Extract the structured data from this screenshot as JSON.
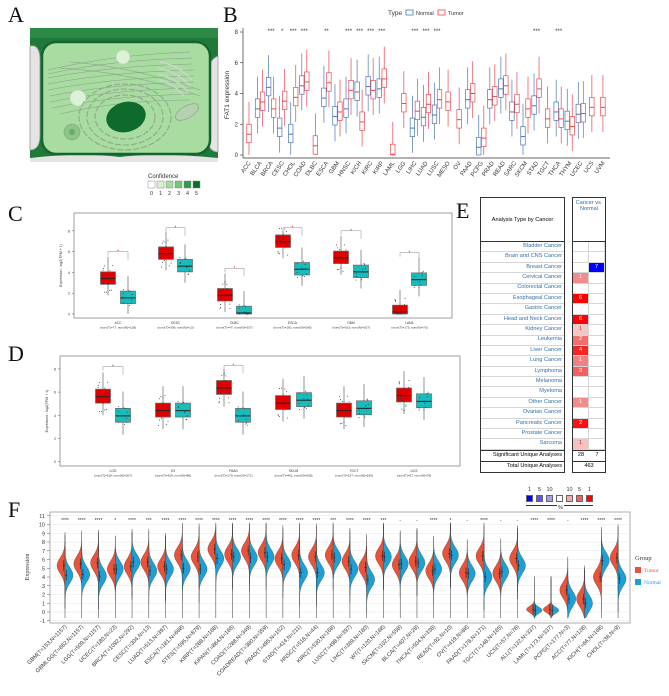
{
  "panels": {
    "a": "A",
    "b": "B",
    "c": "C",
    "d": "D",
    "e": "E",
    "f": "F"
  },
  "panel_a": {
    "legend_title": "Confidence",
    "legend_levels": [
      "0",
      "1",
      "2",
      "3",
      "4",
      "5"
    ],
    "legend_colors": [
      "#ffffff",
      "#d9f0d3",
      "#a6dba0",
      "#74c476",
      "#2e9b4f",
      "#0b6b2b"
    ]
  },
  "chart_data": [
    {
      "type": "box",
      "ylabel": "FAT1 expression",
      "ylim": [
        0,
        8
      ],
      "yticks": [
        0,
        2,
        4,
        6,
        8
      ],
      "legend_title": "Type",
      "legend": [
        "Normal",
        "Tumor"
      ],
      "colors": {
        "Normal": "#4a77b4",
        "Tumor": "#e8474f"
      },
      "categories": [
        "ACC",
        "BLCA",
        "BRCA",
        "CESC",
        "CHOL",
        "COAD",
        "DLBC",
        "ESCA",
        "GBM",
        "HNSC",
        "KICH",
        "KIRC",
        "KIRP",
        "LAML",
        "LGG",
        "LIHC",
        "LUAD",
        "LUSC",
        "MESO",
        "OV",
        "PAAD",
        "PCPG",
        "PRAD",
        "READ",
        "SARC",
        "SKCM",
        "STAD",
        "TGCT",
        "THCA",
        "THYM",
        "UCEC",
        "UCS",
        "UVM"
      ],
      "normal_median": [
        null,
        3.0,
        4.4,
        1.75,
        1.35,
        4.5,
        null,
        3.7,
        2.5,
        3.0,
        4.1,
        4.45,
        4.3,
        null,
        null,
        1.75,
        2.45,
        2.6,
        null,
        null,
        3.6,
        0.5,
        3.6,
        4.3,
        2.8,
        1.2,
        3.2,
        null,
        2.8,
        2.2,
        2.65,
        null,
        null
      ],
      "tumor_median": [
        1.35,
        3.45,
        3.0,
        3.5,
        3.75,
        4.75,
        0.6,
        4.7,
        2.8,
        4.2,
        2.15,
        4.2,
        4.95,
        0.05,
        3.35,
        2.85,
        3.3,
        3.6,
        3.45,
        2.3,
        4.0,
        1.1,
        3.8,
        4.5,
        3.3,
        3.0,
        4.3,
        2.35,
        2.35,
        1.85,
        2.7,
        3.1,
        3.1
      ],
      "significance": [
        "",
        "",
        "***",
        "*",
        "***",
        "***",
        "",
        "**",
        "",
        "***",
        "***",
        "***",
        "***",
        "",
        "",
        "***",
        "***",
        "***",
        "",
        "",
        "",
        "",
        "",
        "",
        "",
        "",
        "***",
        "",
        "***",
        "",
        "",
        "",
        ""
      ]
    },
    {
      "type": "box",
      "ylabel": "Expression - log2(TPM + 1)",
      "ylim": [
        0,
        8
      ],
      "yticks": [
        0,
        2,
        4,
        6,
        8
      ],
      "colors": {
        "Tumor": "#e00000",
        "Normal": "#17bcbc"
      },
      "categories": [
        "ACC",
        "CESC",
        "DLBC",
        "ESCA",
        "GBM",
        "LAML"
      ],
      "sublabels": [
        "(num(T)=77; num(N)=128)",
        "(num(T)=306; num(N)=13)",
        "(num(T)=47; num(N)=337)",
        "(num(T)=182; num(N)=286)",
        "(num(T)=163; num(N)=207)",
        "(num(T)=173; num(N)=70)"
      ],
      "tumor_median": [
        3.4,
        5.8,
        1.8,
        6.95,
        5.4,
        0.2
      ],
      "normal_median": [
        1.55,
        4.6,
        0.1,
        4.3,
        4.05,
        3.3
      ],
      "significance": [
        "*",
        "*",
        "*",
        "*",
        "*",
        "*"
      ]
    },
    {
      "type": "box",
      "ylabel": "Expression - log2(TPM + 1)",
      "ylim": [
        0,
        8
      ],
      "yticks": [
        0,
        2,
        4,
        6,
        8
      ],
      "colors": {
        "Tumor": "#e00000",
        "Normal": "#17bcbc"
      },
      "categories": [
        "LGG",
        "OV",
        "PAAD",
        "SKCM",
        "TGCT",
        "UCS"
      ],
      "sublabels": [
        "(num(T)=518; num(N)=207)",
        "(num(T)=426; num(N)=88)",
        "(num(T)=179; num(N)=171)",
        "(num(T)=461; num(N)=558)",
        "(num(T)=137; num(N)=165)",
        "(num(T)=57; num(N)=78)"
      ],
      "tumor_median": [
        5.6,
        4.4,
        6.35,
        5.05,
        4.4,
        5.7
      ],
      "normal_median": [
        3.95,
        4.4,
        3.95,
        5.3,
        4.6,
        5.2
      ],
      "significance": [
        "*",
        "",
        "*",
        "",
        "",
        ""
      ]
    },
    {
      "type": "table",
      "header_label": "Analysis Type by Cancer",
      "column_header": "Cancer vs. Normal",
      "rows": [
        {
          "name": "Bladder Cancer",
          "over": "",
          "under": "",
          "over_color": "",
          "under_color": ""
        },
        {
          "name": "Brain and CNS Cancer",
          "over": "",
          "under": "",
          "over_color": "",
          "under_color": ""
        },
        {
          "name": "Breast Cancer",
          "over": "",
          "under": "7",
          "over_color": "",
          "under_color": "#0000ff"
        },
        {
          "name": "Cervical Cancer",
          "over": "1",
          "under": "",
          "over_color": "#f28b8b",
          "under_color": ""
        },
        {
          "name": "Colorectal Cancer",
          "over": "",
          "under": "",
          "over_color": "",
          "under_color": ""
        },
        {
          "name": "Esophageal Cancer",
          "over": "6",
          "under": "",
          "over_color": "#ff0000",
          "under_color": ""
        },
        {
          "name": "Gastric Cancer",
          "over": "",
          "under": "",
          "over_color": "",
          "under_color": ""
        },
        {
          "name": "Head and Neck Cancer",
          "over": "6",
          "under": "",
          "over_color": "#ff0000",
          "under_color": ""
        },
        {
          "name": "Kidney Cancer",
          "over": "1",
          "under": "",
          "over_color": "#f9c6c6",
          "under_color": ""
        },
        {
          "name": "Leukemia",
          "over": "2",
          "under": "",
          "over_color": "#f07070",
          "under_color": ""
        },
        {
          "name": "Liver Cancer",
          "over": "4",
          "under": "",
          "over_color": "#f52424",
          "under_color": ""
        },
        {
          "name": "Lung Cancer",
          "over": "1",
          "under": "",
          "over_color": "#f28080",
          "under_color": ""
        },
        {
          "name": "Lymphoma",
          "over": "3",
          "under": "",
          "over_color": "#f06262",
          "under_color": ""
        },
        {
          "name": "Melanoma",
          "over": "",
          "under": "",
          "over_color": "",
          "under_color": ""
        },
        {
          "name": "Myeloma",
          "over": "",
          "under": "",
          "over_color": "",
          "under_color": ""
        },
        {
          "name": "Other Cancer",
          "over": "1",
          "under": "",
          "over_color": "#f28b8b",
          "under_color": ""
        },
        {
          "name": "Ovarian Cancer",
          "over": "",
          "under": "",
          "over_color": "",
          "under_color": ""
        },
        {
          "name": "Pancreatic Cancer",
          "over": "2",
          "under": "",
          "over_color": "#ff1010",
          "under_color": ""
        },
        {
          "name": "Prostate Cancer",
          "over": "",
          "under": "",
          "over_color": "",
          "under_color": ""
        },
        {
          "name": "Sarcoma",
          "over": "1",
          "under": "",
          "over_color": "#f9c0c0",
          "under_color": ""
        }
      ],
      "significant_label": "Significant Unique Analyses",
      "significant_over": "28",
      "significant_under": "7",
      "total_label": "Total Unique Analyses",
      "total": "463",
      "legend": {
        "labels": [
          "1",
          "5",
          "10",
          "10",
          "5",
          "1"
        ],
        "unit": "%",
        "colors": [
          "#0000ee",
          "#5a5ae8",
          "#a0a0ee",
          "#ffffff",
          "#f4a8a8",
          "#f06060",
          "#ff0000"
        ]
      }
    },
    {
      "type": "violin",
      "ylabel": "Expression",
      "ylim": [
        -1,
        11
      ],
      "yticks": [
        -1,
        0,
        1,
        2,
        3,
        4,
        5,
        6,
        7,
        8,
        9,
        10,
        11
      ],
      "legend_title": "Group",
      "legend": [
        "Tumor",
        "Normal"
      ],
      "colors": {
        "Tumor": "#e8533a",
        "Normal": "#1ea0d6"
      },
      "categories": [
        "GBM(T=153,N=1157)",
        "GBMLGG(T=662,N=1157)",
        "LGG(T=509,N=1157)",
        "UCEC(T=180,N=23)",
        "BRCA(T=1092,N=292)",
        "CESC(T=304,N=13)",
        "LUAD(T=513,N=397)",
        "ESCA(T=181,N=668)",
        "STES(T=595,N=879)",
        "KIRP(T=288,N=168)",
        "KIPAN(T=884,N=166)",
        "COAD(T=288,N=349)",
        "COADREAD(T=380,N=359)",
        "PRAD(T=495,N=152)",
        "STAD(T=414,N=211)",
        "HNSC(T=518,N=44)",
        "KIRC(T=530,N=168)",
        "LUSC(T=498,N=397)",
        "LIHC(T=369,N=160)",
        "WT(T=120,N=168)",
        "SKCM(T=102,N=558)",
        "BLCA(T=407,N=28)",
        "THCA(T=504,N=338)",
        "READ(T=92,N=10)",
        "OV(T=419,N=88)",
        "PAAD(T=178,N=171)",
        "TGCT(T=148,N=165)",
        "UCS(T=57,N=78)",
        "ALL(T=132,N=337)",
        "LAML(T=173,N=337)",
        "PCPG(T=177,N=3)",
        "ACC(T=77,N=128)",
        "KICH(T=66,N=168)",
        "CHOL(T=36,N=9)"
      ],
      "tumor_median": [
        5.3,
        5.5,
        5.6,
        4.9,
        5.2,
        5.7,
        5.2,
        6.5,
        6.3,
        7.2,
        6.6,
        7.0,
        6.8,
        6.1,
        6.5,
        6.3,
        6.5,
        5.8,
        5.1,
        6.4,
        5.4,
        5.8,
        4.7,
        6.7,
        4.5,
        6.4,
        4.4,
        6.1,
        0.3,
        0.3,
        2.5,
        1.5,
        4.0,
        6.2
      ],
      "normal_median": [
        4.2,
        4.3,
        4.1,
        4.9,
        5.7,
        4.7,
        4.9,
        5.0,
        4.9,
        6.1,
        6.3,
        6.2,
        6.3,
        5.4,
        4.5,
        4.5,
        6.2,
        4.9,
        3.7,
        6.3,
        5.5,
        5.6,
        4.9,
        6.5,
        4.4,
        4.0,
        4.6,
        5.3,
        0.2,
        0.2,
        1.5,
        1.0,
        5.9,
        3.8
      ],
      "significance": [
        "****",
        "****",
        "****",
        "*",
        "****",
        "***",
        "****",
        "****",
        "****",
        "****",
        "****",
        "****",
        "****",
        "****",
        "****",
        "****",
        "***",
        "****",
        "****",
        "***",
        "-",
        "-",
        "****",
        "*",
        "-",
        "****",
        "-",
        "-",
        "****",
        "****",
        "-",
        "****",
        "****",
        "****"
      ]
    }
  ]
}
